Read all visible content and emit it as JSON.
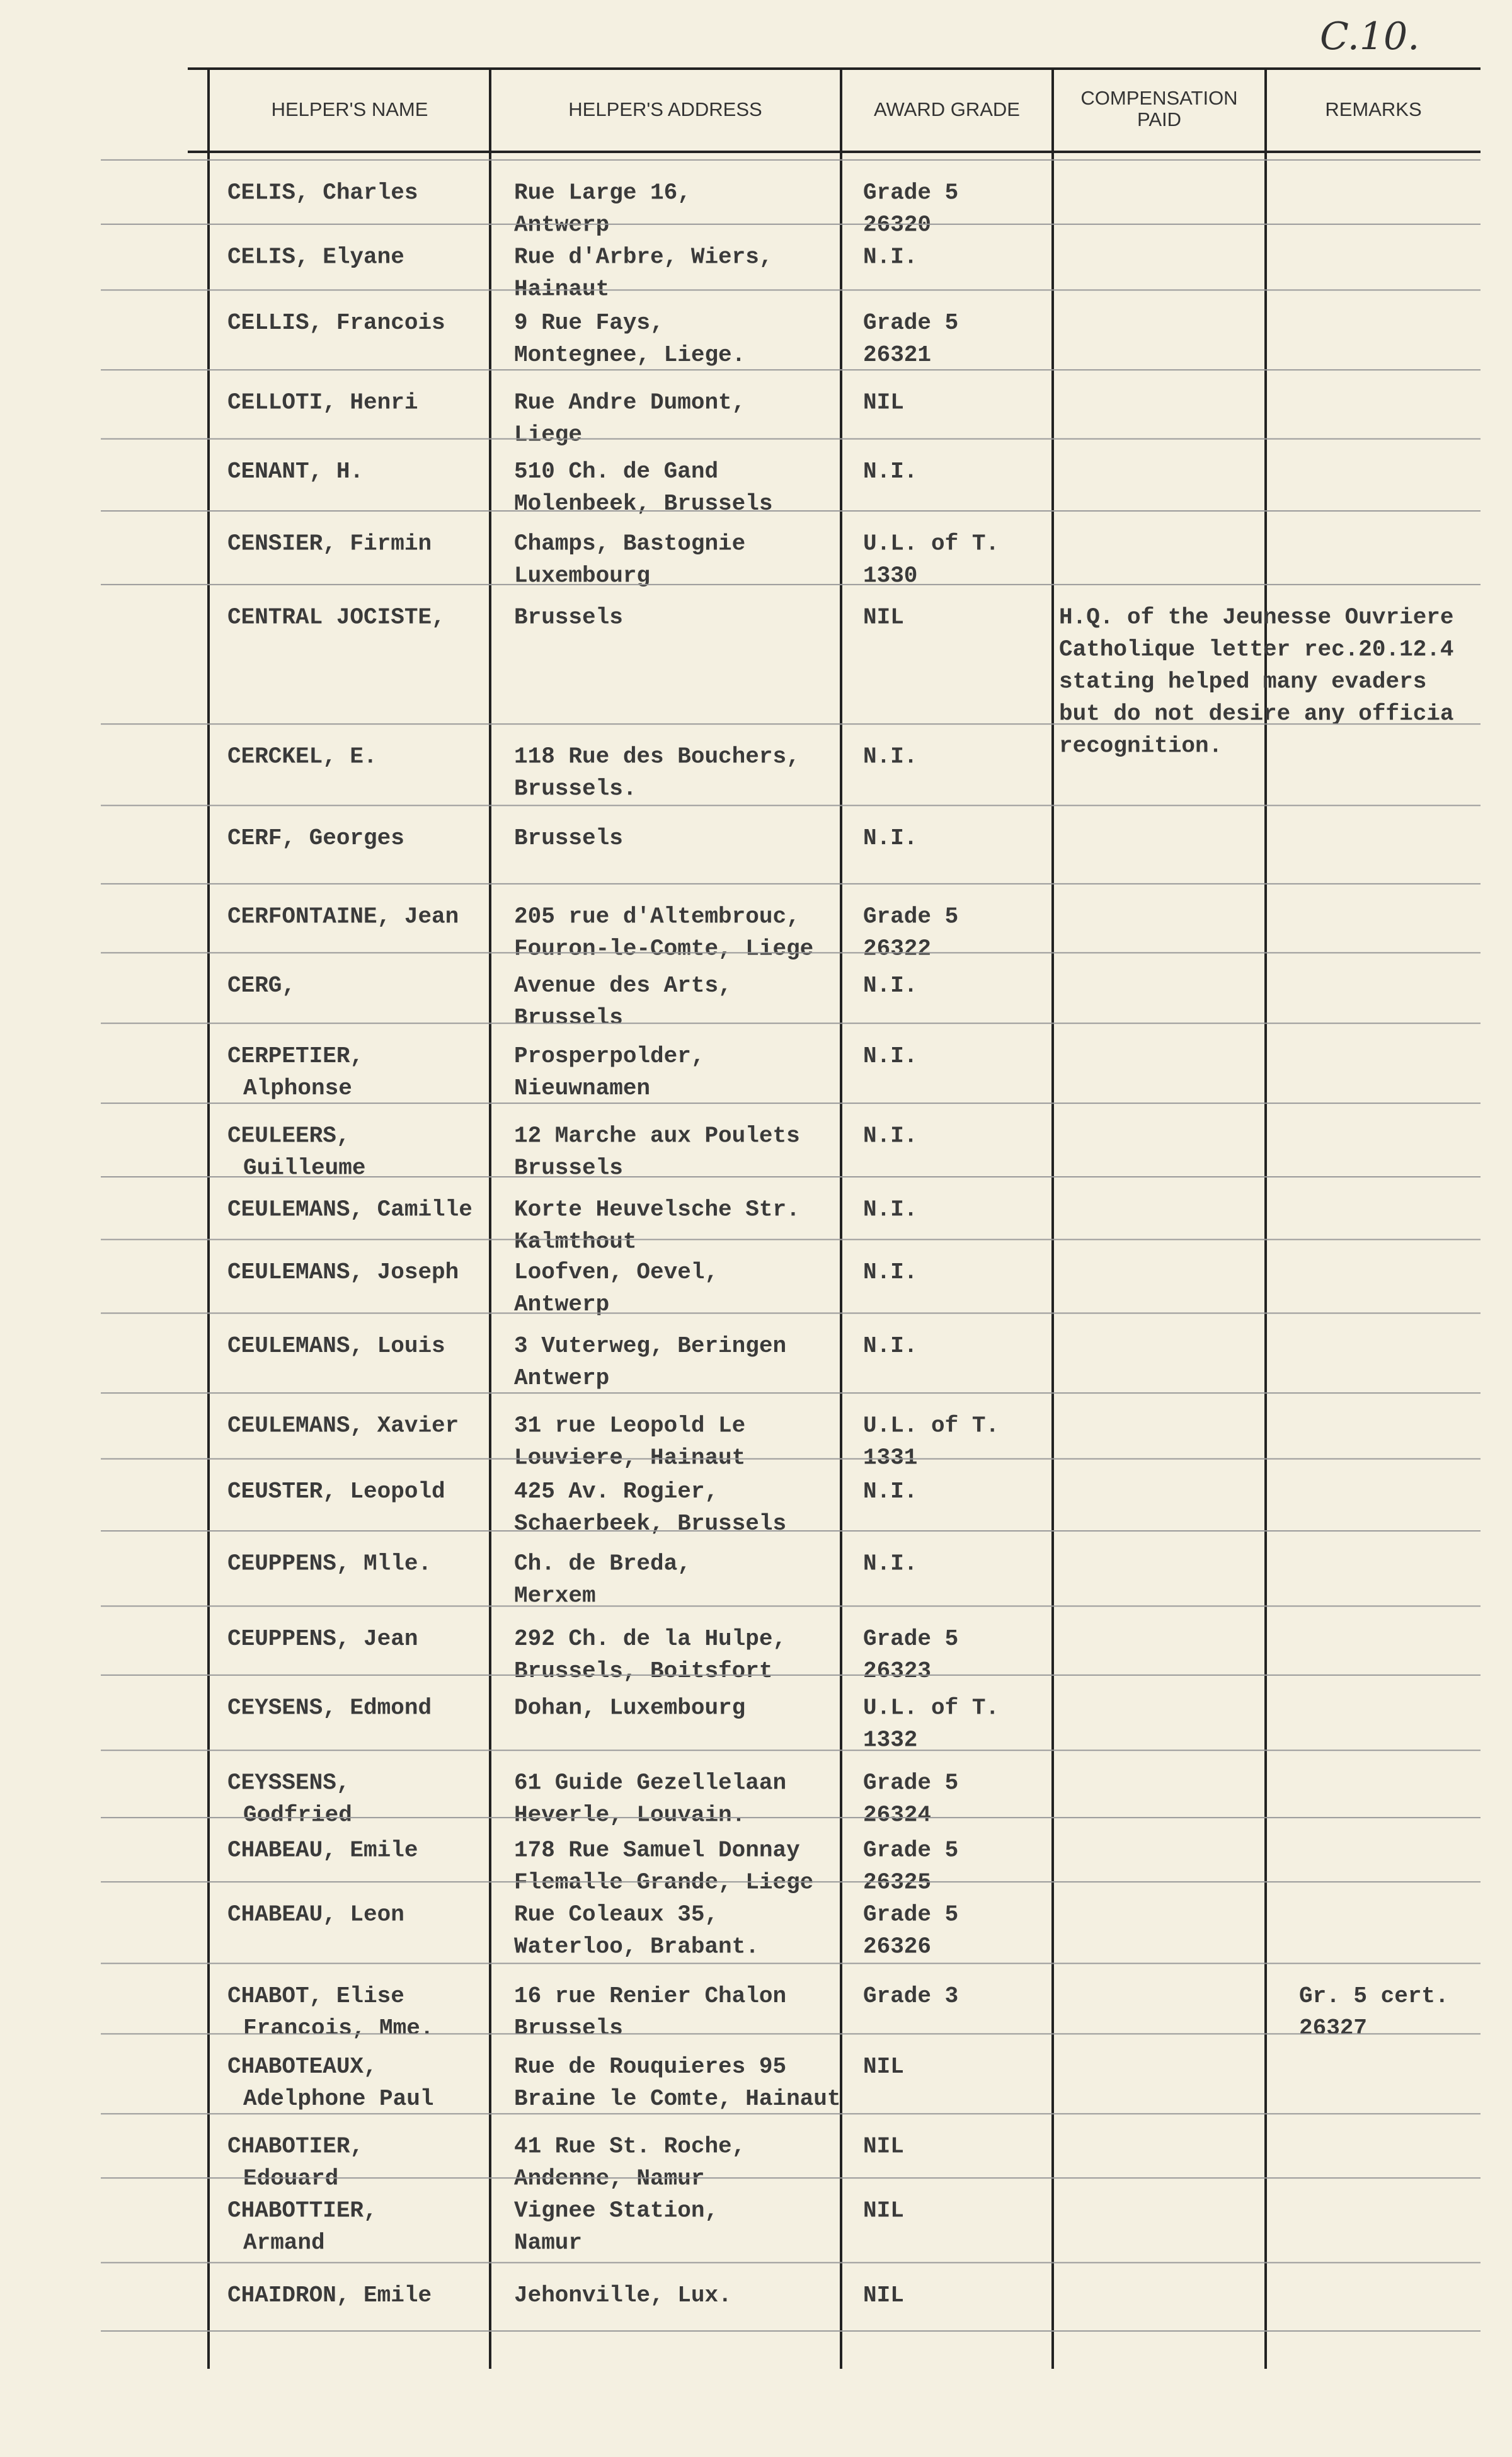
{
  "corner": "C.10.",
  "header": {
    "name": "HELPER'S NAME",
    "address": "HELPER'S ADDRESS",
    "award": "AWARD GRADE",
    "compensation": [
      "COMPENSATION",
      "PAID"
    ],
    "remarks": "REMARKS"
  },
  "rows": [
    {
      "name": [
        "CELIS, Charles"
      ],
      "address": [
        "Rue Large 16,",
        "Antwerp"
      ],
      "award": [
        "Grade 5",
        "26320"
      ]
    },
    {
      "name": [
        "CELIS, Elyane"
      ],
      "address": [
        "Rue d'Arbre, Wiers,",
        "Hainaut"
      ],
      "award": [
        "N.I."
      ]
    },
    {
      "name": [
        "CELLIS, Francois"
      ],
      "address": [
        "9 Rue Fays,",
        "Montegnee, Liege."
      ],
      "award": [
        "Grade 5",
        "26321"
      ]
    },
    {
      "name": [
        "CELLOTI, Henri"
      ],
      "address": [
        "Rue Andre Dumont,",
        "Liege"
      ],
      "award": [
        "NIL"
      ]
    },
    {
      "name": [
        "CENANT, H."
      ],
      "address": [
        "510 Ch. de Gand",
        "Molenbeek, Brussels"
      ],
      "award": [
        "N.I."
      ]
    },
    {
      "name": [
        "CENSIER, Firmin"
      ],
      "address": [
        "Champs, Bastognie",
        "Luxembourg"
      ],
      "award": [
        "U.L. of T.",
        "1330"
      ]
    },
    {
      "name": [
        "CENTRAL JOCISTE,"
      ],
      "address": [
        "Brussels"
      ],
      "award": [
        "NIL"
      ],
      "note": [
        "H.Q. of the Jeunesse Ouvriere",
        "Catholique letter rec.20.12.4",
        "stating helped many evaders",
        "but do not desire any officia",
        "recognition."
      ]
    },
    {
      "name": [
        "CERCKEL, E."
      ],
      "address": [
        "118 Rue des Bouchers,",
        "Brussels."
      ],
      "award": [
        "N.I."
      ]
    },
    {
      "name": [
        "CERF, Georges"
      ],
      "address": [
        "Brussels"
      ],
      "award": [
        "N.I."
      ]
    },
    {
      "name": [
        "CERFONTAINE, Jean"
      ],
      "address": [
        "205 rue d'Altembrouc,",
        "Fouron-le-Comte, Liege"
      ],
      "award": [
        "Grade 5",
        "26322"
      ]
    },
    {
      "name": [
        "CERG,"
      ],
      "address": [
        "Avenue des Arts,",
        "Brussels"
      ],
      "award": [
        "N.I."
      ]
    },
    {
      "name": [
        "CERPETIER,",
        "Alphonse"
      ],
      "address": [
        "Prosperpolder,",
        "Nieuwnamen"
      ],
      "award": [
        "N.I."
      ]
    },
    {
      "name": [
        "CEULEERS,",
        "Guilleume"
      ],
      "address": [
        "12 Marche aux Poulets",
        "Brussels"
      ],
      "award": [
        "N.I."
      ]
    },
    {
      "name": [
        "CEULEMANS, Camille"
      ],
      "address": [
        "Korte Heuvelsche Str.",
        "Kalmthout"
      ],
      "award": [
        "N.I."
      ]
    },
    {
      "name": [
        "CEULEMANS, Joseph"
      ],
      "address": [
        "Loofven, Oevel,",
        "Antwerp"
      ],
      "award": [
        "N.I."
      ]
    },
    {
      "name": [
        "CEULEMANS, Louis"
      ],
      "address": [
        "3 Vuterweg, Beringen",
        "Antwerp"
      ],
      "award": [
        "N.I."
      ]
    },
    {
      "name": [
        "CEULEMANS, Xavier"
      ],
      "address": [
        "31 rue Leopold Le",
        "Louviere, Hainaut"
      ],
      "award": [
        "U.L. of T.",
        "1331"
      ]
    },
    {
      "name": [
        "CEUSTER, Leopold"
      ],
      "address": [
        "425 Av. Rogier,",
        "Schaerbeek, Brussels"
      ],
      "award": [
        "N.I."
      ]
    },
    {
      "name": [
        "CEUPPENS, Mlle."
      ],
      "address": [
        "Ch. de Breda,",
        "Merxem"
      ],
      "award": [
        "N.I."
      ]
    },
    {
      "name": [
        "CEUPPENS, Jean"
      ],
      "address": [
        "292 Ch. de la Hulpe,",
        "Brussels, Boitsfort"
      ],
      "award": [
        "Grade 5",
        "26323"
      ]
    },
    {
      "name": [
        "CEYSENS, Edmond"
      ],
      "address": [
        "Dohan, Luxembourg"
      ],
      "award": [
        "U.L. of T.",
        "1332"
      ]
    },
    {
      "name": [
        "CEYSSENS,",
        "Godfried"
      ],
      "address": [
        "61 Guide Gezellelaan",
        "Heverle, Louvain."
      ],
      "award": [
        "Grade 5",
        "26324"
      ]
    },
    {
      "name": [
        "CHABEAU, Emile"
      ],
      "address": [
        "178 Rue Samuel Donnay",
        "Flemalle Grande, Liege"
      ],
      "award": [
        "Grade 5",
        "26325"
      ]
    },
    {
      "name": [
        "CHABEAU, Leon"
      ],
      "address": [
        "Rue Coleaux 35,",
        "Waterloo, Brabant."
      ],
      "award": [
        "Grade 5",
        "26326"
      ]
    },
    {
      "name": [
        "CHABOT, Elise",
        "Francois, Mme."
      ],
      "address": [
        "16 rue Renier Chalon",
        "Brussels"
      ],
      "award": [
        "Grade 3"
      ],
      "remarks": [
        "Gr. 5 cert.",
        "26327"
      ]
    },
    {
      "name": [
        "CHABOTEAUX,",
        "Adelphone Paul"
      ],
      "address": [
        "Rue de Rouquieres 95",
        "Braine le Comte, Hainaut"
      ],
      "award": [
        "NIL"
      ]
    },
    {
      "name": [
        "CHABOTIER,",
        "Edouard"
      ],
      "address": [
        "41 Rue St. Roche,",
        "Andenne, Namur"
      ],
      "award": [
        "NIL"
      ]
    },
    {
      "name": [
        "CHABOTTIER,",
        "Armand"
      ],
      "address": [
        "Vignee Station,",
        "Namur"
      ],
      "award": [
        "NIL"
      ]
    },
    {
      "name": [
        "CHAIDRON, Emile"
      ],
      "address": [
        "Jehonville, Lux."
      ],
      "award": [
        "NIL"
      ]
    }
  ]
}
